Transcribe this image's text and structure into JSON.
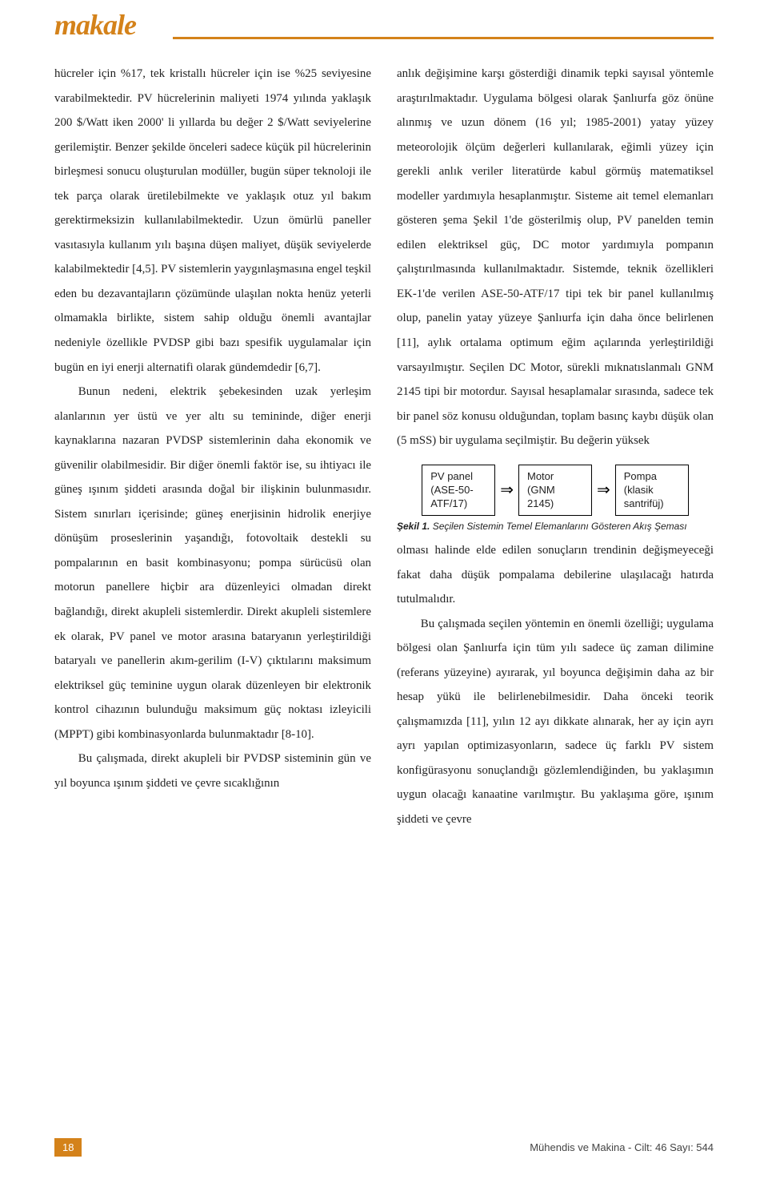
{
  "header": {
    "title": "makale"
  },
  "col_left": {
    "p1": "hücreler için %17, tek kristallı hücreler için ise %25 seviyesine varabilmektedir. PV hücrelerinin maliyeti 1974 yılında yaklaşık 200 $/Watt iken 2000' li yıllarda bu değer 2 $/Watt seviyelerine gerilemiştir. Benzer şekilde önceleri sadece küçük pil hücrelerinin birleşmesi sonucu oluşturulan modüller, bugün süper teknoloji ile tek parça olarak üretilebilmekte ve yaklaşık otuz yıl bakım gerektirmeksizin kullanılabilmektedir. Uzun ömürlü paneller vasıtasıyla kullanım yılı başına düşen maliyet, düşük seviyelerde kalabilmektedir [4,5]. PV sistemlerin yaygınlaşmasına engel teşkil eden bu dezavantajların çözümünde ulaşılan nokta henüz yeterli olmamakla birlikte, sistem sahip olduğu önemli avantajlar nedeniyle özellikle PVDSP gibi bazı spesifik uygulamalar için bugün en iyi enerji alternatifi olarak gündemdedir [6,7].",
    "p2": "Bunun nedeni, elektrik şebekesinden uzak yerleşim alanlarının yer üstü ve yer altı su temininde, diğer enerji kaynaklarına nazaran PVDSP sistemlerinin daha ekonomik ve güvenilir olabilmesidir. Bir diğer önemli faktör ise, su ihtiyacı ile güneş ışınım şiddeti arasında doğal bir ilişkinin bulunmasıdır. Sistem sınırları içerisinde; güneş enerjisinin hidrolik enerjiye dönüşüm proseslerinin yaşandığı, fotovoltaik destekli su pompalarının en basit kombinasyonu; pompa sürücüsü olan motorun panellere hiçbir ara düzenleyici olmadan direkt bağlandığı, direkt akupleli sistemlerdir. Direkt akupleli sistemlere ek olarak, PV panel ve motor arasına bataryanın yerleştirildiği bataryalı ve panellerin akım-gerilim (I-V) çıktılarını maksimum elektriksel güç teminine uygun olarak düzenleyen bir elektronik kontrol cihazının bulunduğu maksimum güç noktası izleyicili (MPPT) gibi kombinasyonlarda bulunmaktadır [8-10].",
    "p3": "Bu çalışmada, direkt akupleli bir PVDSP sisteminin gün ve yıl boyunca ışınım şiddeti ve çevre sıcaklığının"
  },
  "col_right": {
    "p1": "anlık değişimine karşı gösterdiği dinamik tepki sayısal yöntemle araştırılmaktadır. Uygulama bölgesi olarak Şanlıurfa göz önüne alınmış ve uzun dönem (16 yıl; 1985-2001) yatay yüzey meteorolojik ölçüm değerleri kullanılarak, eğimli yüzey için gerekli anlık veriler literatürde kabul görmüş matematiksel modeller yardımıyla hesaplanmıştır. Sisteme ait temel elemanları gösteren şema Şekil 1'de gösterilmiş olup, PV panelden temin edilen elektriksel güç, DC motor yardımıyla pompanın çalıştırılmasında kullanılmaktadır. Sistemde, teknik özellikleri EK-1'de verilen ASE-50-ATF/17 tipi tek bir panel kullanılmış olup, panelin yatay yüzeye  Şanlıurfa için daha önce belirlenen [11], aylık ortalama optimum eğim açılarında yerleştirildiği varsayılmıştır.  Seçilen DC Motor, sürekli mıknatıslanmalı GNM 2145 tipi bir motordur. Sayısal hesaplamalar sırasında, sadece tek bir panel söz konusu olduğundan, toplam basınç kaybı düşük olan (5 mSS) bir uygulama seçilmiştir. Bu değerin yüksek",
    "p2": "olması halinde elde edilen sonuçların trendinin değişmeyeceği fakat daha düşük pompalama debilerine ulaşılacağı hatırda tutulmalıdır.",
    "p3": "Bu çalışmada seçilen yöntemin en önemli özelliği; uygulama bölgesi olan Şanlıurfa için tüm yılı sadece üç zaman dilimine (referans yüzeyine) ayırarak, yıl boyunca değişimin daha az bir hesap yükü ile belirlenebilmesidir. Daha önceki teorik çalışmamızda [11], yılın 12 ayı dikkate alınarak, her ay için ayrı ayrı yapılan optimizasyonların, sadece üç farklı PV sistem konfigürasyonu sonuçlandığı gözlemlendiğinden, bu yaklaşımın uygun olacağı kanaatine varılmıştır. Bu yaklaşıma göre, ışınım şiddeti ve çevre"
  },
  "flow": {
    "box1_line1": "PV panel",
    "box1_line2": "(ASE-50-",
    "box1_line3": "ATF/17)",
    "box2_line1": "Motor",
    "box2_line2": "(GNM",
    "box2_line3": "2145)",
    "box3_line1": "Pompa",
    "box3_line2": "(klasik",
    "box3_line3": "santrifüj)",
    "arrow": "⇒",
    "caption_bold": "Şekil 1.",
    "caption_text": " Seçilen Sistemin Temel Elemanlarını Gösteren Akış Şeması"
  },
  "footer": {
    "page_num": "18",
    "text": "Mühendis ve Makina - Cilt: 46 Sayı: 544"
  },
  "colors": {
    "accent": "#d4821a",
    "text": "#222222",
    "bg": "#ffffff"
  }
}
